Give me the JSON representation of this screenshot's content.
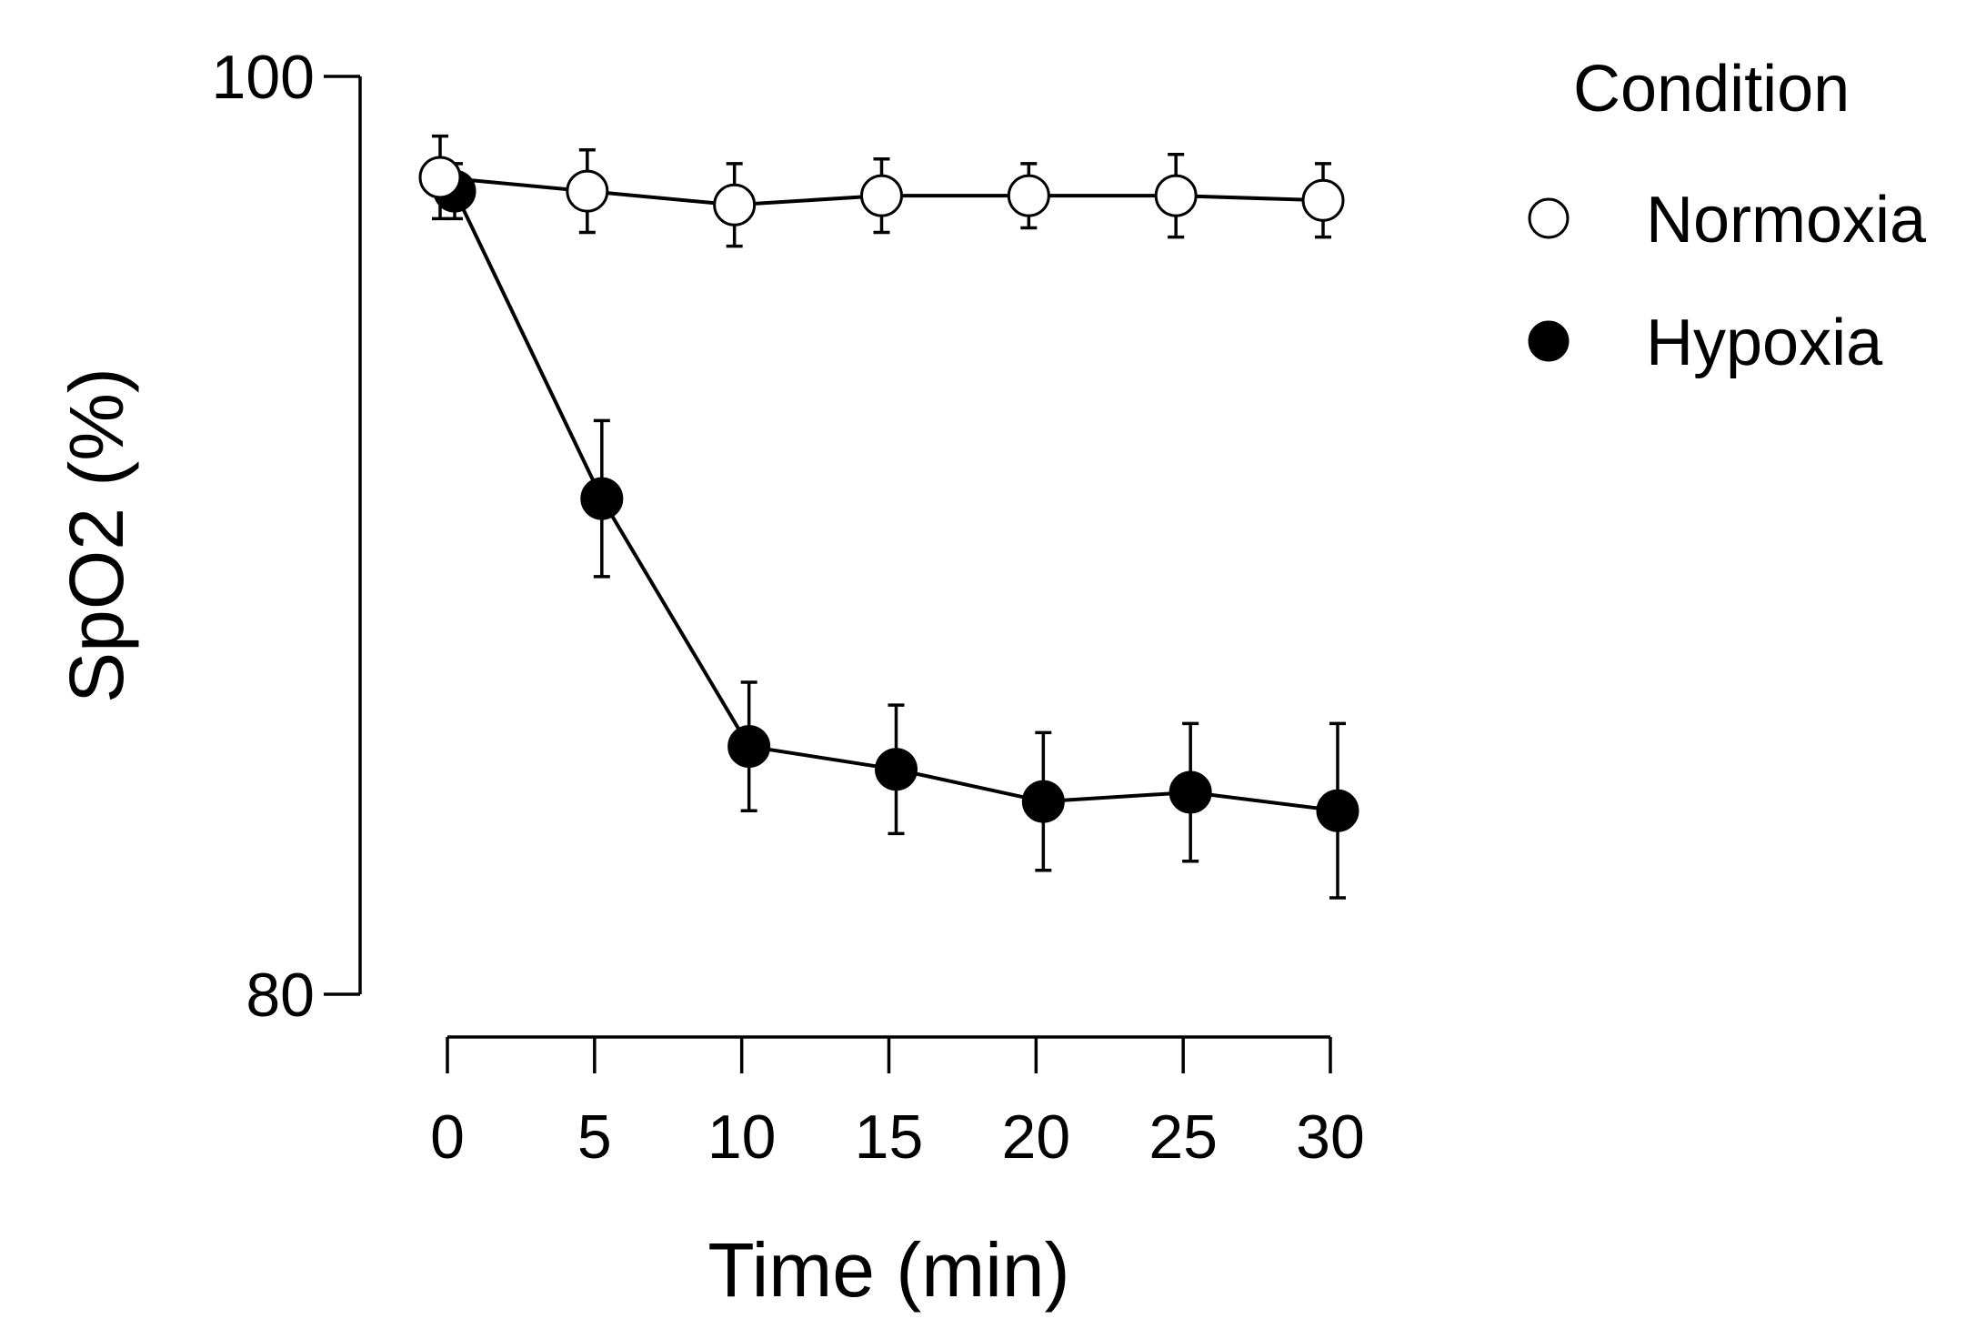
{
  "chart_data": {
    "type": "line",
    "title": "",
    "xlabel": "Time (min)",
    "ylabel": "SpO2 (%)",
    "x": [
      0,
      5,
      10,
      15,
      20,
      25,
      30
    ],
    "x_tick_labels": [
      "0",
      "5",
      "10",
      "15",
      "20",
      "25",
      "30"
    ],
    "y_tick_labels": [
      "100",
      "80"
    ],
    "ylim": [
      80,
      100
    ],
    "xlim": [
      0,
      30
    ],
    "grid": false,
    "legend": {
      "title": "Condition",
      "position": "top-right"
    },
    "series": [
      {
        "name": "Normoxia",
        "marker": "open-circle",
        "values": [
          97.8,
          97.5,
          97.2,
          97.4,
          97.4,
          97.4,
          97.3
        ],
        "errors": [
          0.9,
          0.9,
          0.9,
          0.8,
          0.7,
          0.9,
          0.8
        ]
      },
      {
        "name": "Hypoxia",
        "marker": "filled-circle",
        "values": [
          97.5,
          90.8,
          85.4,
          84.9,
          84.2,
          84.4,
          84.0
        ],
        "errors": [
          0.6,
          1.7,
          1.4,
          1.4,
          1.5,
          1.5,
          1.9
        ]
      }
    ],
    "colors": {
      "line": "#000000",
      "open_fill": "#ffffff",
      "filled_fill": "#000000"
    }
  }
}
